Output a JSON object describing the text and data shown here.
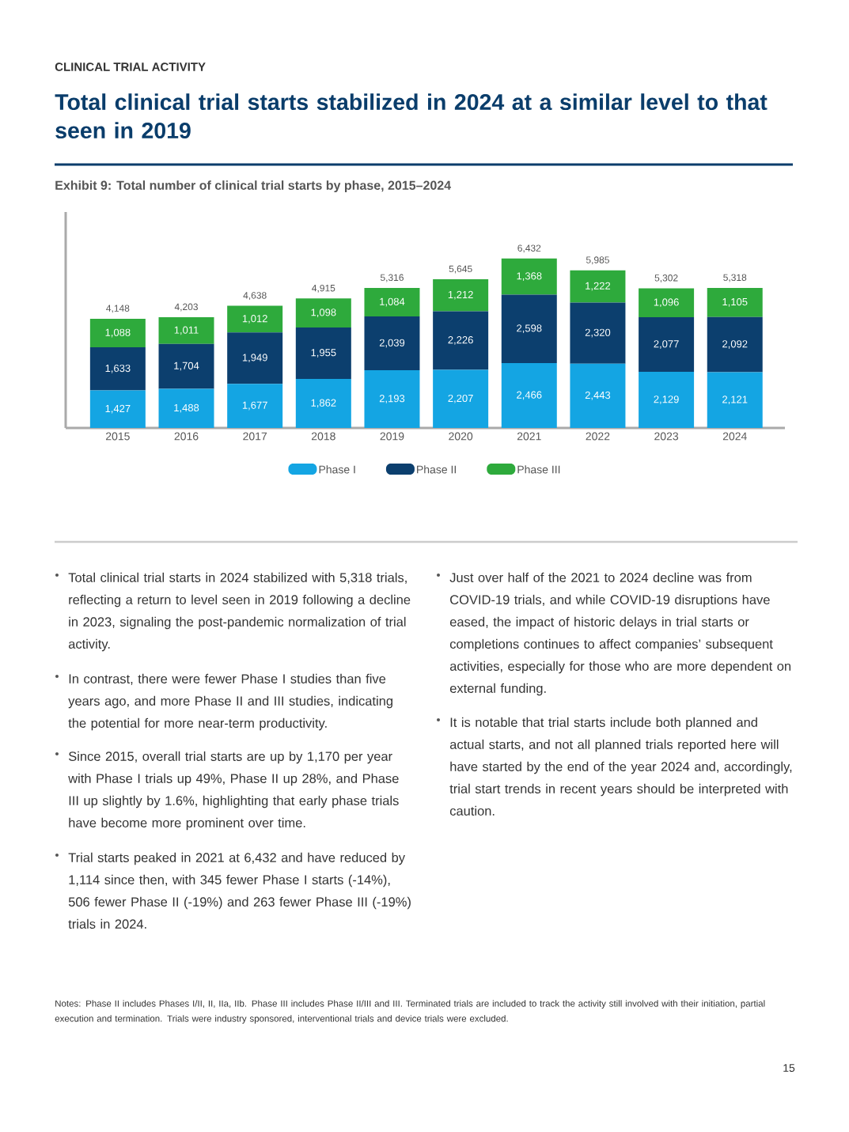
{
  "chart_data": {
    "type": "bar",
    "stacked": true,
    "legend": "bottom",
    "title": "Total clinical trial starts stabilized in 2024 at a similar level to that seen in 2019",
    "subtitle": "Exhibit 9: Total number of clinical trial starts by phase, 2015–2024",
    "categories": [
      "2015",
      "2016",
      "2017",
      "2018",
      "2019",
      "2020",
      "2021",
      "2022",
      "2023",
      "2024"
    ],
    "series": [
      {
        "name": "Phase I",
        "color": "#14a5e3",
        "values": [
          1427,
          1488,
          1677,
          1862,
          2193,
          2207,
          2466,
          2443,
          2129,
          2121
        ],
        "value_labels": [
          "1,427",
          "1,488",
          "1,677",
          "1,862",
          "2,193",
          "2,207",
          "2,466",
          "2,443",
          "2,129",
          "2,121"
        ]
      },
      {
        "name": "Phase II",
        "color": "#0c3f6e",
        "values": [
          1633,
          1704,
          1949,
          1955,
          2039,
          2226,
          2598,
          2320,
          2077,
          2092
        ],
        "value_labels": [
          "1,633",
          "1,704",
          "1,949",
          "1,955",
          "2,039",
          "2,226",
          "2,598",
          "2,320",
          "2,077",
          "2,092"
        ]
      },
      {
        "name": "Phase III",
        "color": "#2eaa3c",
        "values": [
          1088,
          1011,
          1012,
          1098,
          1084,
          1212,
          1368,
          1222,
          1096,
          1105
        ],
        "value_labels": [
          "1,088",
          "1,011",
          "1,012",
          "1,098",
          "1,084",
          "1,212",
          "1,368",
          "1,222",
          "1,096",
          "1,105"
        ]
      }
    ],
    "totals": [
      "4,148",
      "4,203",
      "4,638",
      "4,915",
      "5,316",
      "5,645",
      "6,432",
      "5,985",
      "5,302",
      "5,318"
    ],
    "annotations": [
      "CLINICAL TRIAL ACTIVITY",
      "Total clinical trial starts in 2024 stabilized with 5,318 trials, reflecting a return to level seen in 2019 following a decline in 2023, signaling the post-pandemic normalization of trial activity.",
      "In contrast, there were fewer Phase I studies than five years ago, and more Phase II and III studies, indicating the potential for more near-term productivity.",
      "Since 2015, overall trial starts are up by 1,170 per year with Phase I trials up 49%, Phase II up 28%, and Phase III up slightly by 1.6%, highlighting that early phase trials have become more prominent over time.",
      "Trial starts peaked in 2021 at 6,432 and have reduced by 1,114 since then, with 345 fewer Phase I starts (-14%), 506 fewer Phase II (-19%) and 263 fewer Phase III (-19%) trials in 2024.",
      "Just over half of the 2021 to 2024 decline was from COVID-19 trials, and while COVID-19 disruptions have eased, the impact of historic delays in trial starts or completions continues to affect companies’ subsequent activities, especially for those who are more dependent on external funding.",
      "It is notable that trial starts include both planned and actual starts, and not all planned trials reported here will have started by the end of the year 2024 and, accordingly, trial start trends in recent years should be interpreted with caution.",
      "Notes: Phase II includes Phases I/II, II, IIa, IIb. Phase III includes Phase II/III and III. Terminated trials are included to track the activity still involved with their initiation, partial execution and termination. Trials were industry sponsored, interventional trials and device trials were excluded.",
      "15"
    ]
  }
}
